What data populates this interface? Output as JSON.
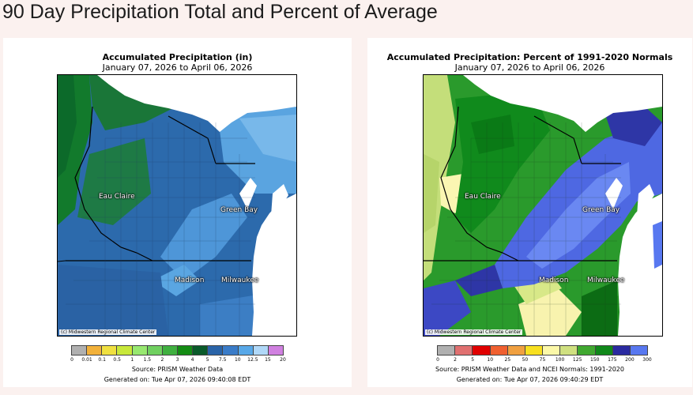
{
  "page_title": "90 Day Precipitation Total and Percent of Average",
  "left_map": {
    "title": "Accumulated Precipitation (in)",
    "date_range": "January 07, 2026 to April 06, 2026",
    "credit": "(c) Midwestern Regional Climate Center",
    "cities": [
      "Eau Claire",
      "Green Bay",
      "Madison",
      "Milwaukee"
    ],
    "legend": {
      "ticks": [
        "0",
        "0.01",
        "0.1",
        "0.5",
        "1",
        "1.5",
        "2",
        "3",
        "4",
        "5",
        "7.5",
        "10",
        "12.5",
        "15",
        "20"
      ],
      "colors": [
        "#b0b0b0",
        "#f2b13a",
        "#f0e040",
        "#c8e83a",
        "#98e870",
        "#70d060",
        "#40b040",
        "#148c14",
        "#0a5a2a",
        "#2a64a8",
        "#3a7cc8",
        "#58a8e8",
        "#b0d8f8",
        "#d080e0"
      ]
    },
    "source": "Source: PRISM Weather Data",
    "generated": "Generated on: Tue Apr 07, 2026 09:40:08 EDT"
  },
  "right_map": {
    "title": "Accumulated Precipitation: Percent of 1991-2020 Normals",
    "date_range": "January 07, 2026 to April 06, 2026",
    "credit": "(c) Midwestern Regional Climate Center",
    "cities": [
      "Eau Claire",
      "Green Bay",
      "Madison",
      "Milwaukee"
    ],
    "legend": {
      "ticks": [
        "0",
        "2",
        "5",
        "10",
        "25",
        "50",
        "75",
        "100",
        "125",
        "150",
        "175",
        "200",
        "300"
      ],
      "colors": [
        "#b0b0b0",
        "#e07070",
        "#e00000",
        "#f06030",
        "#f0a040",
        "#f8e020",
        "#fcf8a8",
        "#d0e080",
        "#40a830",
        "#10881a",
        "#2a2aa0",
        "#5878f0"
      ]
    },
    "source": "Source: PRISM Weather Data and NCEI Normals: 1991-2020",
    "generated": "Generated on: Tue Apr 07, 2026 09:40:29 EDT"
  }
}
